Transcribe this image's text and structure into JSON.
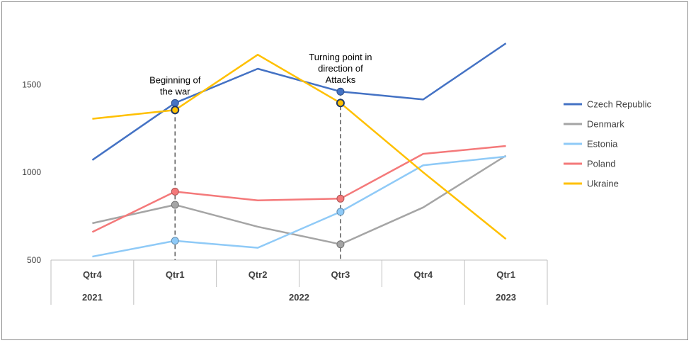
{
  "chart_data": {
    "type": "line",
    "title": "",
    "xlabel": "",
    "ylabel": "",
    "ylim": [
      500,
      1800
    ],
    "yticks": [
      500,
      1000,
      1500
    ],
    "categories": [
      "Qtr4",
      "Qtr1",
      "Qtr2",
      "Qtr3",
      "Qtr4",
      "Qtr1"
    ],
    "year_groups": [
      {
        "label": "2021",
        "span": 1
      },
      {
        "label": "2022",
        "span": 4
      },
      {
        "label": "2023",
        "span": 1
      }
    ],
    "legend_position": "right",
    "series": [
      {
        "name": "Czech Republic",
        "color": "#4472c4",
        "values": [
          1070,
          1395,
          1590,
          1460,
          1415,
          1735
        ],
        "markers": [
          1,
          3
        ]
      },
      {
        "name": "Denmark",
        "color": "#a5a5a5",
        "values": [
          710,
          815,
          690,
          590,
          800,
          1095
        ],
        "markers": [
          1,
          3
        ]
      },
      {
        "name": "Estonia",
        "color": "#8fcaf7",
        "values": [
          520,
          610,
          570,
          775,
          1040,
          1090
        ],
        "markers": [
          1,
          3
        ]
      },
      {
        "name": "Poland",
        "color": "#f4797a",
        "values": [
          660,
          890,
          840,
          850,
          1105,
          1150
        ],
        "markers": [
          1,
          3
        ]
      },
      {
        "name": "Ukraine",
        "color": "#ffc000",
        "values": [
          1305,
          1355,
          1670,
          1395,
          1000,
          620
        ],
        "markers": [
          1,
          3
        ]
      }
    ],
    "annotations": [
      {
        "category_index": 1,
        "lines": [
          "Beginning of",
          "the war"
        ]
      },
      {
        "category_index": 3,
        "lines": [
          "Turning point in",
          "direction of",
          "Attacks"
        ]
      }
    ]
  }
}
